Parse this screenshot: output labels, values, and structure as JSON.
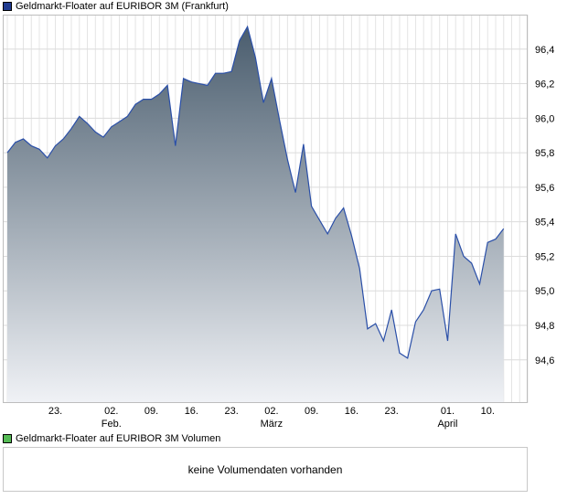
{
  "legend": {
    "price_label": "Geldmarkt-Floater auf EURIBOR 3M (Frankfurt)",
    "price_color": "#1f3a8f",
    "volume_label": "Geldmarkt-Floater auf EURIBOR 3M Volumen",
    "volume_color": "#55bb55"
  },
  "volume_panel": {
    "message": "keine Volumendaten vorhanden"
  },
  "chart_data": {
    "type": "area",
    "title": "",
    "xlabel": "",
    "ylabel": "",
    "ylim": [
      94.35,
      96.6
    ],
    "yticks": [
      94.6,
      94.8,
      95.0,
      95.2,
      95.4,
      95.6,
      95.8,
      96.0,
      96.2,
      96.4
    ],
    "ytick_labels": [
      "94,6",
      "94,8",
      "95,0",
      "95,2",
      "95,4",
      "95,6",
      "95,8",
      "96,0",
      "96,2",
      "96,4"
    ],
    "xticks": [
      {
        "label": "23.",
        "sub": "",
        "index": 6
      },
      {
        "label": "02.",
        "sub": "Feb.",
        "index": 13
      },
      {
        "label": "09.",
        "sub": "",
        "index": 18
      },
      {
        "label": "16.",
        "sub": "",
        "index": 23
      },
      {
        "label": "23.",
        "sub": "",
        "index": 28
      },
      {
        "label": "02.",
        "sub": "März",
        "index": 33
      },
      {
        "label": "09.",
        "sub": "",
        "index": 38
      },
      {
        "label": "16.",
        "sub": "",
        "index": 43
      },
      {
        "label": "23.",
        "sub": "",
        "index": 48
      },
      {
        "label": "01.",
        "sub": "April",
        "index": 55
      },
      {
        "label": "10.",
        "sub": "",
        "index": 60
      }
    ],
    "grid": true,
    "x_count": 66,
    "series": [
      {
        "name": "Geldmarkt-Floater auf EURIBOR 3M (Frankfurt)",
        "line_color": "#2a4fa8",
        "fill_top": "#4a5d6e",
        "fill_bottom": "#f0f2f6",
        "values": [
          95.8,
          95.86,
          95.88,
          95.84,
          95.82,
          95.77,
          95.84,
          95.88,
          95.94,
          96.01,
          95.97,
          95.92,
          95.89,
          95.95,
          95.98,
          96.01,
          96.08,
          96.11,
          96.11,
          96.14,
          96.19,
          95.84,
          96.23,
          96.21,
          96.2,
          96.19,
          96.26,
          96.26,
          96.27,
          96.45,
          96.53,
          96.35,
          96.09,
          96.23,
          95.99,
          95.76,
          95.57,
          95.85,
          95.49,
          95.41,
          95.33,
          95.42,
          95.48,
          95.32,
          95.13,
          94.78,
          94.81,
          94.71,
          94.89,
          94.64,
          94.61,
          94.82,
          94.89,
          95.0,
          95.01,
          94.71,
          95.33,
          95.2,
          95.16,
          95.04,
          95.28,
          95.3,
          95.36
        ]
      }
    ]
  }
}
